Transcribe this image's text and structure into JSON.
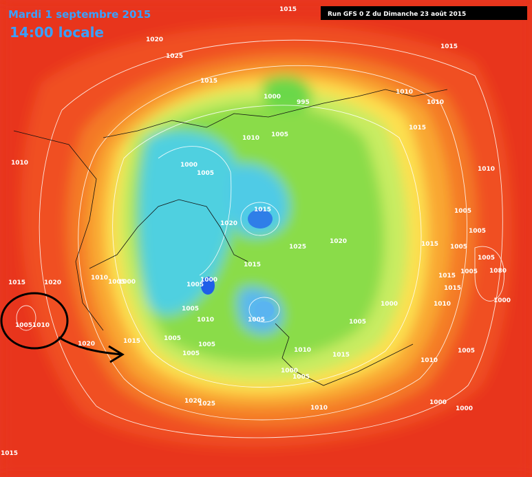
{
  "header": {
    "date": "Mardi 1 septembre 2015",
    "time": "14:00 locale",
    "run": "Run GFS 0 Z du Dimanche 23 août 2015"
  },
  "isobar_labels": [
    "1015",
    "1020",
    "1025",
    "1015",
    "1015",
    "1000",
    "995",
    "1010",
    "1010",
    "1010",
    "1005",
    "1015",
    "1010",
    "1000",
    "1005",
    "1010",
    "1015",
    "1005",
    "1005",
    "1020",
    "1005",
    "1015",
    "1020",
    "1025",
    "1005",
    "1015",
    "1015",
    "1005",
    "1080",
    "1010",
    "1005",
    "1000",
    "1015",
    "1020",
    "1005",
    "1000",
    "1015",
    "1000",
    "1010",
    "1000",
    "1005",
    "1010",
    "1005",
    "1005",
    "1005",
    "1010",
    "1005",
    "1005",
    "1015",
    "1020",
    "1010",
    "1015",
    "1005",
    "1005",
    "1010",
    "1000",
    "1005",
    "1010",
    "1000",
    "1000",
    "1020",
    "1025",
    "1015"
  ]
}
